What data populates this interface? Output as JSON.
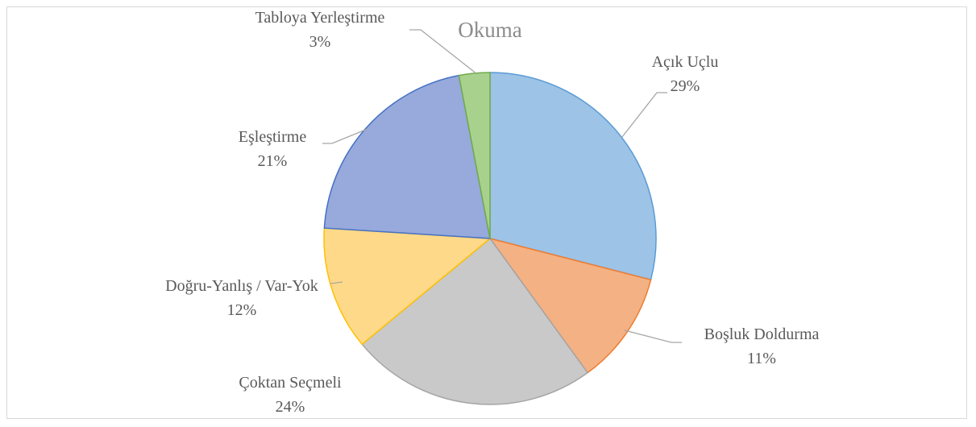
{
  "chart_data": {
    "type": "pie",
    "title": "Okuma",
    "categories": [
      "Açık Uçlu",
      "Boşluk Doldurma",
      "Çoktan Seçmeli",
      "Doğru-Yanlış / Var-Yok",
      "Eşleştirme",
      "Tabloya Yerleştirme"
    ],
    "values": [
      29,
      11,
      24,
      12,
      21,
      3
    ],
    "value_labels": [
      "29%",
      "11%",
      "24%",
      "12%",
      "21%",
      "3%"
    ],
    "colors": [
      "#9dc3e6",
      "#f4b183",
      "#c9c9c9",
      "#ffd98a",
      "#98a9dc",
      "#a9d18e"
    ]
  }
}
